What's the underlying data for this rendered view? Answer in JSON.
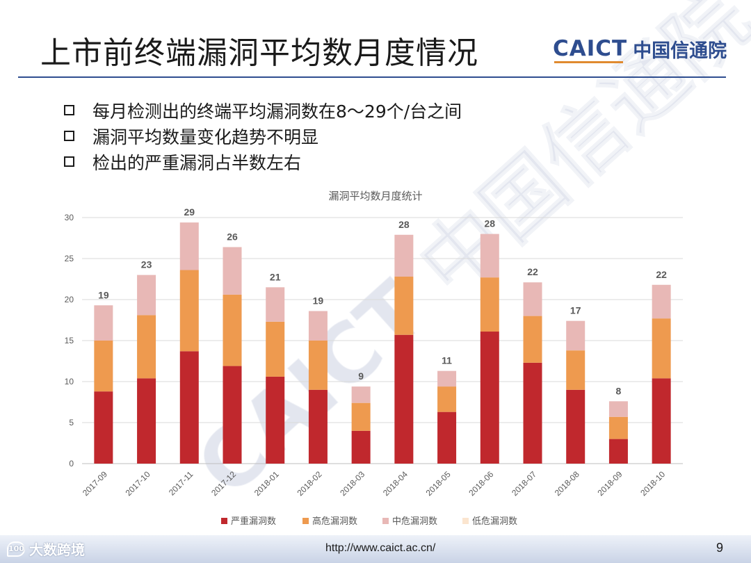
{
  "slide": {
    "title": "上市前终端漏洞平均数月度情况",
    "logo_mark": "CAICT",
    "logo_name": "中国信通院",
    "watermark": "CAICT 中国信通院",
    "bullets": [
      "每月检测出的终端平均漏洞数在8～29个/台之间",
      "漏洞平均数量变化趋势不明显",
      "检出的严重漏洞占半数左右"
    ],
    "footer_url": "http://www.caict.ac.cn/",
    "page_number": "9",
    "brand_icon_text": "100",
    "brand_text": "大数跨境"
  },
  "chart_data": {
    "type": "bar",
    "stacked": true,
    "title": "漏洞平均数月度统计",
    "categories": [
      "2017-09",
      "2017-10",
      "2017-11",
      "2017-12",
      "2018-01",
      "2018-02",
      "2018-03",
      "2018-04",
      "2018-05",
      "2018-06",
      "2018-07",
      "2018-08",
      "2018-09",
      "2018-10"
    ],
    "series": [
      {
        "name": "严重漏洞数",
        "color": "#c0282d",
        "values": [
          8.8,
          10.4,
          13.7,
          11.9,
          10.6,
          9.0,
          4.0,
          15.7,
          6.3,
          16.1,
          12.3,
          9.0,
          3.0,
          10.4
        ]
      },
      {
        "name": "高危漏洞数",
        "color": "#ee9a4f",
        "values": [
          6.2,
          7.7,
          9.9,
          8.7,
          6.7,
          6.0,
          3.4,
          7.1,
          3.1,
          6.6,
          5.7,
          4.8,
          2.7,
          7.3
        ]
      },
      {
        "name": "中危漏洞数",
        "color": "#e8b8b6",
        "values": [
          4.3,
          4.9,
          5.8,
          5.8,
          4.2,
          3.6,
          2.0,
          5.1,
          1.9,
          5.3,
          4.1,
          3.6,
          1.9,
          4.1
        ]
      },
      {
        "name": "低危漏洞数",
        "color": "#fbe5cf",
        "values": [
          0,
          0,
          0,
          0,
          0,
          0,
          0,
          0,
          0,
          0,
          0,
          0,
          0,
          0
        ]
      }
    ],
    "totals": [
      "19",
      "23",
      "29",
      "26",
      "21",
      "19",
      "9",
      "28",
      "11",
      "28",
      "22",
      "17",
      "8",
      "22"
    ],
    "ylim": [
      0,
      30
    ],
    "yticks": [
      0,
      5,
      10,
      15,
      20,
      25,
      30
    ],
    "grid": true,
    "legend": "bottom",
    "xlabel": "",
    "ylabel": ""
  }
}
